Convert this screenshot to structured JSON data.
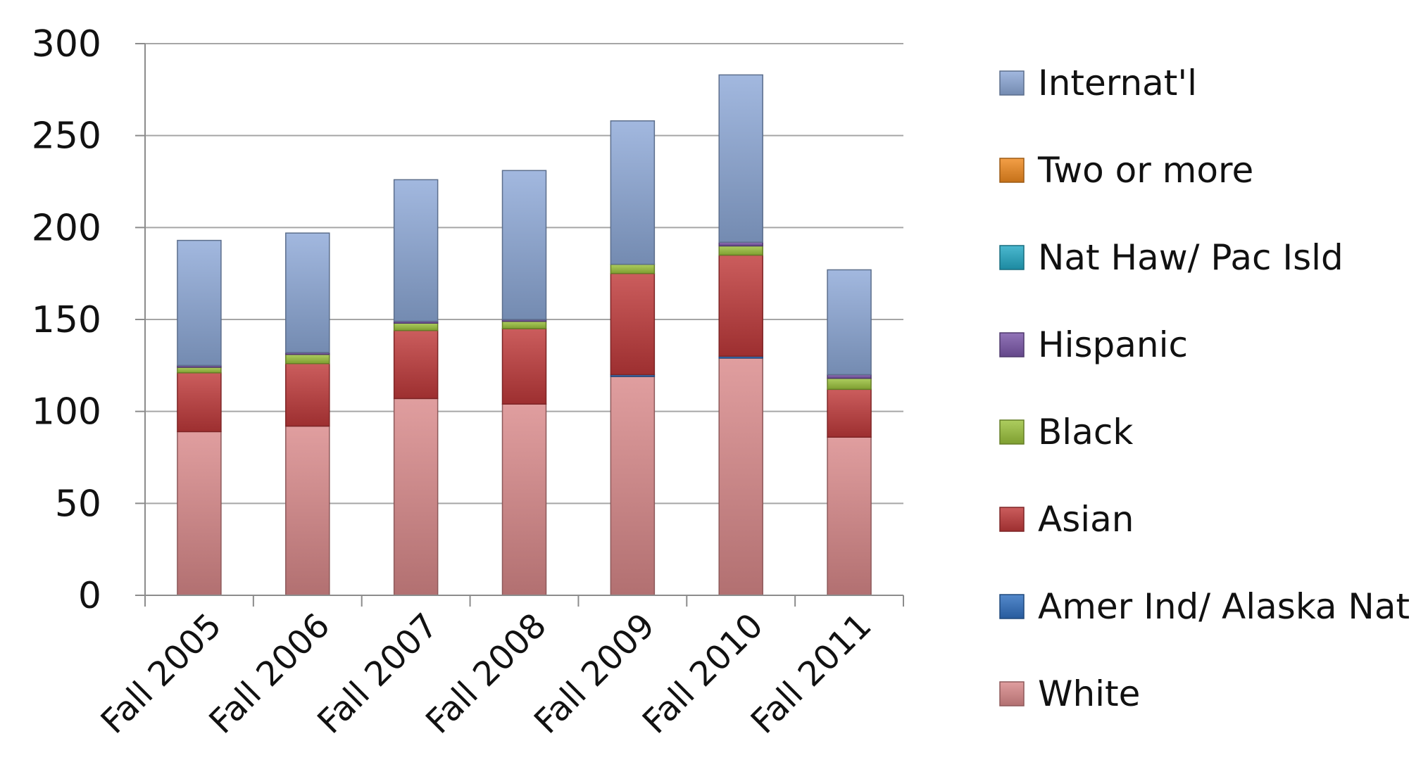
{
  "chart_data": {
    "type": "bar",
    "stacked": true,
    "categories": [
      "Fall 2005",
      "Fall 2006",
      "Fall 2007",
      "Fall 2008",
      "Fall 2009",
      "Fall 2010",
      "Fall 2011"
    ],
    "ylim": [
      0,
      300
    ],
    "yticks": [
      0,
      50,
      100,
      150,
      200,
      250,
      300
    ],
    "grid": true,
    "legend": "right",
    "series": [
      {
        "name": "White",
        "color": "#d9898a",
        "values": [
          89,
          92,
          107,
          104,
          119,
          129,
          86
        ]
      },
      {
        "name": "Amer Ind/ Alaska Nat",
        "color": "#2f6fbf",
        "values": [
          0,
          0,
          0,
          0,
          1,
          1,
          0
        ]
      },
      {
        "name": "Asian",
        "color": "#c0393a",
        "values": [
          32,
          34,
          37,
          41,
          55,
          55,
          26
        ]
      },
      {
        "name": "Black",
        "color": "#9bc23c",
        "values": [
          3,
          5,
          4,
          4,
          5,
          5,
          6
        ]
      },
      {
        "name": "Hispanic",
        "color": "#7a56a8",
        "values": [
          1,
          1,
          1,
          1,
          0,
          2,
          2
        ]
      },
      {
        "name": "Nat Haw/ Pac Isld",
        "color": "#23a8c4",
        "values": [
          0,
          0,
          0,
          0,
          0,
          0,
          0
        ]
      },
      {
        "name": "Two or more",
        "color": "#f08a1e",
        "values": [
          0,
          0,
          0,
          0,
          0,
          0,
          0
        ]
      },
      {
        "name": "Internat'l",
        "color": "#8da9d8",
        "values": [
          68,
          65,
          77,
          81,
          78,
          91,
          57
        ]
      }
    ]
  }
}
